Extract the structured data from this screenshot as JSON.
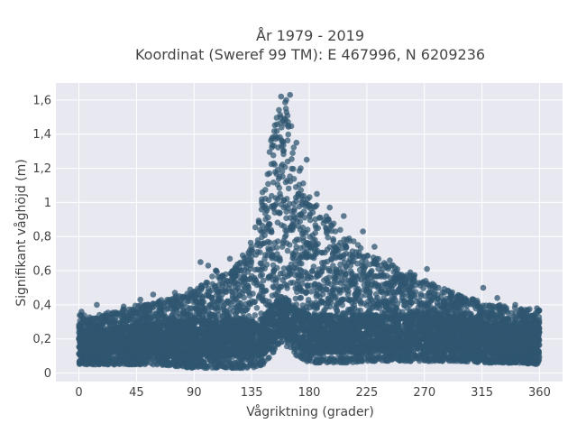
{
  "chart_data": {
    "type": "scatter",
    "title_line1": "År 1979 - 2019",
    "title_line2": "Koordinat (Sweref 99 TM): E 467996, N 6209236",
    "xlabel": "Vågriktning (grader)",
    "ylabel": "Signifikant våghöjd (m)",
    "xlim": [
      -18,
      378
    ],
    "ylim": [
      -0.05,
      1.7
    ],
    "xticks": [
      0,
      45,
      90,
      135,
      180,
      225,
      270,
      315,
      360
    ],
    "xtick_labels": [
      "0",
      "45",
      "90",
      "135",
      "180",
      "225",
      "270",
      "315",
      "360"
    ],
    "yticks": [
      0,
      0.2,
      0.4,
      0.6,
      0.8,
      1,
      1.2,
      1.4,
      1.6
    ],
    "ytick_labels": [
      "0",
      "0,2",
      "0,4",
      "0,6",
      "0,8",
      "1",
      "1,2",
      "1,4",
      "1,6"
    ],
    "grid": true,
    "marker_color": "#2f5670",
    "background_color": "#e8e8f0",
    "envelope": {
      "x": [
        0,
        10,
        20,
        30,
        45,
        60,
        75,
        90,
        100,
        110,
        120,
        130,
        135,
        140,
        145,
        150,
        155,
        160,
        165,
        170,
        175,
        180,
        190,
        200,
        210,
        225,
        240,
        255,
        270,
        285,
        300,
        315,
        330,
        345,
        360
      ],
      "y_max": [
        0.35,
        0.33,
        0.35,
        0.37,
        0.4,
        0.42,
        0.45,
        0.48,
        0.55,
        0.62,
        0.6,
        0.7,
        0.78,
        0.92,
        1.15,
        1.4,
        1.55,
        1.62,
        1.5,
        1.3,
        1.15,
        1.05,
        0.95,
        0.88,
        0.8,
        0.72,
        0.65,
        0.6,
        0.55,
        0.5,
        0.45,
        0.42,
        0.4,
        0.38,
        0.37
      ],
      "y_min": [
        0.05,
        0.05,
        0.05,
        0.05,
        0.05,
        0.05,
        0.04,
        0.03,
        0.03,
        0.03,
        0.03,
        0.03,
        0.03,
        0.04,
        0.05,
        0.1,
        0.15,
        0.15,
        0.12,
        0.1,
        0.08,
        0.06,
        0.06,
        0.06,
        0.06,
        0.07,
        0.07,
        0.07,
        0.07,
        0.07,
        0.07,
        0.06,
        0.06,
        0.06,
        0.05
      ]
    },
    "outliers": [
      [
        2,
        0.36
      ],
      [
        14,
        0.4
      ],
      [
        35,
        0.39
      ],
      [
        48,
        0.43
      ],
      [
        58,
        0.46
      ],
      [
        75,
        0.47
      ],
      [
        87,
        0.49
      ],
      [
        95,
        0.65
      ],
      [
        101,
        0.63
      ],
      [
        107,
        0.6
      ],
      [
        112,
        0.57
      ],
      [
        118,
        0.67
      ],
      [
        128,
        0.69
      ],
      [
        165,
        1.63
      ],
      [
        162,
        1.6
      ],
      [
        158,
        1.62
      ],
      [
        170,
        1.35
      ],
      [
        178,
        1.25
      ],
      [
        186,
        1.05
      ],
      [
        196,
        0.97
      ],
      [
        207,
        0.92
      ],
      [
        222,
        0.83
      ],
      [
        231,
        0.74
      ],
      [
        243,
        0.66
      ],
      [
        259,
        0.59
      ],
      [
        272,
        0.61
      ],
      [
        281,
        0.5
      ],
      [
        289,
        0.48
      ],
      [
        316,
        0.5
      ],
      [
        327,
        0.44
      ],
      [
        341,
        0.4
      ],
      [
        358,
        0.38
      ]
    ]
  }
}
